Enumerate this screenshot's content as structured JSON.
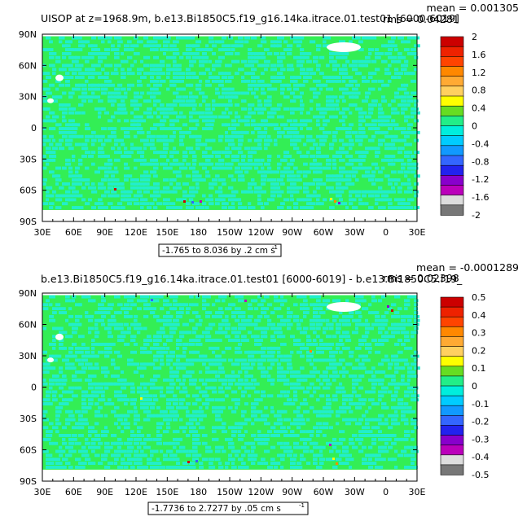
{
  "chart_data": [
    {
      "type": "heatmap",
      "title": "UISOP at z=1968.9m, b.e13.Bi1850C5.f19_g16.14ka.itrace.01.test01 [6000-6019]",
      "stats": {
        "mean": "mean = 0.001305",
        "rms": "rms = 0.04281"
      },
      "contour_info": "-1.765 to 8.036 by .2 cm s",
      "contour_info_sup": "-1",
      "xlabel": "",
      "ylabel": "",
      "x_ticks": [
        "30E",
        "60E",
        "90E",
        "120E",
        "150E",
        "180",
        "150W",
        "120W",
        "90W",
        "60W",
        "30W",
        "0",
        "30E"
      ],
      "y_ticks": [
        "90N",
        "60N",
        "30N",
        "0",
        "30S",
        "60S",
        "90S"
      ],
      "colorbar": {
        "labels": [
          "2",
          "1.6",
          "1.2",
          "0.8",
          "0.4",
          "0",
          "-0.4",
          "-0.8",
          "-1.2",
          "-1.6",
          "-2"
        ],
        "colors": [
          "#cc0000",
          "#ee2200",
          "#ff4400",
          "#ff8800",
          "#ffaa33",
          "#ffd060",
          "#ffff00",
          "#66dd22",
          "#22ee88",
          "#00eedd",
          "#00ccff",
          "#1199ff",
          "#3366ff",
          "#2222ee",
          "#8800cc",
          "#bb00bb",
          "#dddddd",
          "#777777"
        ]
      },
      "background_value_color": "#33ee55",
      "speckle_color": "#22eecc"
    },
    {
      "type": "heatmap",
      "title": "b.e13.Bi1850C5.f19_g16.14ka.itrace.01.test01 [6000-6019] - b.e13.Bi1850C5.f19_",
      "stats": {
        "mean": "mean = -0.0001289",
        "rms": "rms = 0.02398"
      },
      "contour_info": "-1.7736 to 2.7277 by .05 cm s",
      "contour_info_sup": "-1",
      "xlabel": "",
      "ylabel": "",
      "x_ticks": [
        "30E",
        "60E",
        "90E",
        "120E",
        "150E",
        "180",
        "150W",
        "120W",
        "90W",
        "60W",
        "30W",
        "0",
        "30E"
      ],
      "y_ticks": [
        "90N",
        "60N",
        "30N",
        "0",
        "30S",
        "60S",
        "90S"
      ],
      "colorbar": {
        "labels": [
          "0.5",
          "0.4",
          "0.3",
          "0.2",
          "0.1",
          "0",
          "-0.1",
          "-0.2",
          "-0.3",
          "-0.4",
          "-0.5"
        ],
        "colors": [
          "#cc0000",
          "#ee2200",
          "#ff4400",
          "#ff8800",
          "#ffaa33",
          "#ffd060",
          "#ffff00",
          "#66dd22",
          "#22ee88",
          "#00eedd",
          "#00ccff",
          "#1199ff",
          "#3366ff",
          "#2222ee",
          "#8800cc",
          "#bb00bb",
          "#dddddd",
          "#777777"
        ]
      },
      "background_value_color": "#33ee55",
      "speckle_color": "#22eecc"
    }
  ]
}
